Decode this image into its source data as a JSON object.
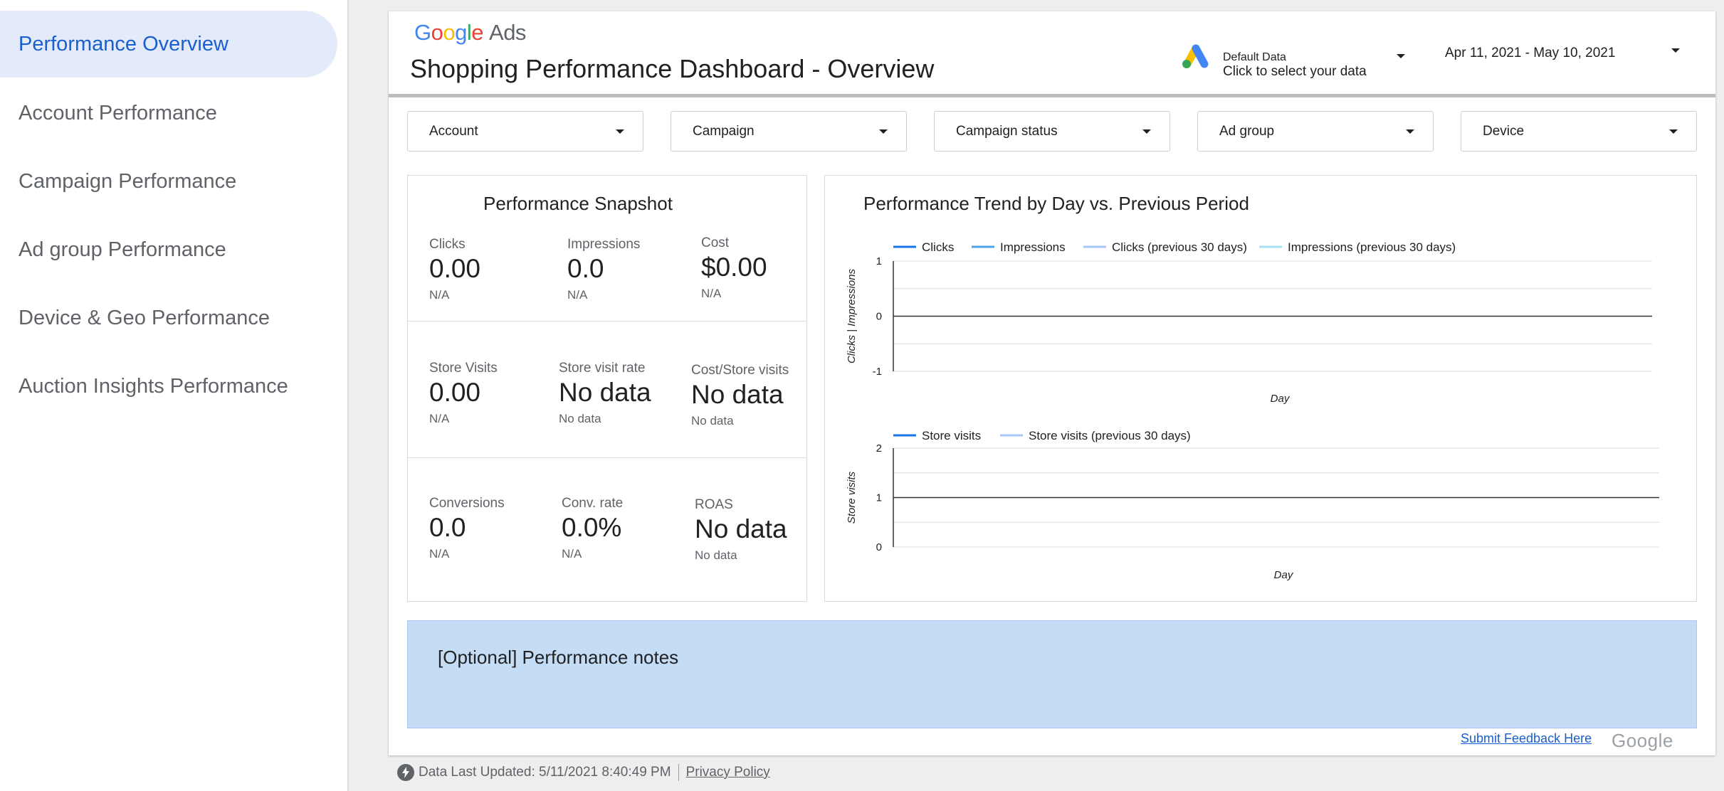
{
  "sidebar": {
    "items": [
      {
        "label": "Performance Overview",
        "active": true
      },
      {
        "label": "Account Performance",
        "active": false
      },
      {
        "label": "Campaign Performance",
        "active": false
      },
      {
        "label": "Ad group Performance",
        "active": false
      },
      {
        "label": "Device & Geo Performance",
        "active": false
      },
      {
        "label": "Auction Insights Performance",
        "active": false
      }
    ]
  },
  "header": {
    "logo": {
      "g1": "G",
      "o1": "o",
      "o2": "o",
      "g2": "g",
      "l": "l",
      "e": "e",
      "ads": "Ads"
    },
    "title": "Shopping Performance Dashboard - Overview",
    "data_source": {
      "label": "Default Data",
      "sub": "Click to select your data",
      "icon": "google-ads-logo-icon"
    },
    "date_range": "Apr 11, 2021 - May 10, 2021"
  },
  "filters": [
    "Account",
    "Campaign",
    "Campaign status",
    "Ad group",
    "Device"
  ],
  "snapshot": {
    "title": "Performance Snapshot",
    "kpis": [
      {
        "label": "Clicks",
        "value": "0.00",
        "sub": "N/A"
      },
      {
        "label": "Impressions",
        "value": "0.0",
        "sub": "N/A"
      },
      {
        "label": "Cost",
        "value": "$0.00",
        "sub": "N/A"
      },
      {
        "label": "Store Visits",
        "value": "0.00",
        "sub": "N/A"
      },
      {
        "label": "Store visit rate",
        "value": "No data",
        "sub": "No data"
      },
      {
        "label": "Cost/Store visits",
        "value": "No data",
        "sub": "No data"
      },
      {
        "label": "Conversions",
        "value": "0.0",
        "sub": "N/A"
      },
      {
        "label": "Conv. rate",
        "value": "0.0%",
        "sub": "N/A"
      },
      {
        "label": "ROAS",
        "value": "No data",
        "sub": "No data"
      }
    ]
  },
  "trend": {
    "title": "Performance Trend by Day vs. Previous Period"
  },
  "chart_data": [
    {
      "type": "line",
      "title": "",
      "xlabel": "Day",
      "ylabel": "Clicks | Impressions",
      "ylim": [
        -1,
        1
      ],
      "yticks": [
        "1",
        "0",
        "-1"
      ],
      "grid": true,
      "legend_placement": "top-left",
      "series": [
        {
          "name": "Clicks",
          "color": "#1a73e8",
          "values": []
        },
        {
          "name": "Impressions",
          "color": "#4aa3e8",
          "values": []
        },
        {
          "name": "Clicks (previous 30 days)",
          "color": "#a8c7fa",
          "values": []
        },
        {
          "name": "Impressions (previous 30 days)",
          "color": "#a6e1f2",
          "values": []
        }
      ]
    },
    {
      "type": "line",
      "title": "",
      "xlabel": "Day",
      "ylabel": "Store visits",
      "ylim": [
        0,
        2
      ],
      "yticks": [
        "2",
        "1",
        "0"
      ],
      "grid": true,
      "legend_placement": "top-left",
      "series": [
        {
          "name": "Store visits",
          "color": "#1a73e8",
          "values": []
        },
        {
          "name": "Store visits (previous 30 days)",
          "color": "#a8c7fa",
          "values": []
        }
      ]
    }
  ],
  "notes": "[Optional] Performance notes",
  "feedback_link": "Submit Feedback Here",
  "google_mark": "Google",
  "footer": {
    "updated": "Data Last Updated: 5/11/2021 8:40:49 PM",
    "privacy": "Privacy Policy"
  }
}
